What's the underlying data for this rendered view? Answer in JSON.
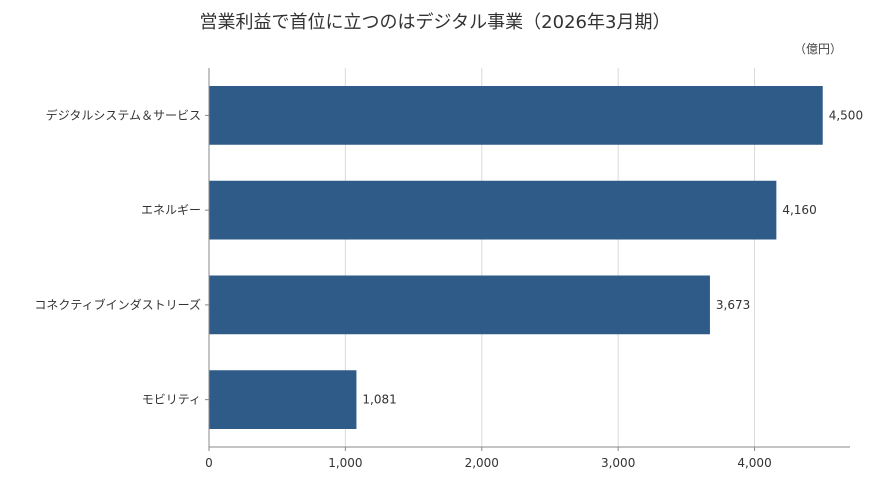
{
  "chart_data": {
    "type": "bar",
    "orientation": "horizontal",
    "title": "営業利益で首位に立つのはデジタル事業（2026年3月期）",
    "unit_label": "（億円）",
    "categories": [
      "デジタルシステム＆サービス",
      "エネルギー",
      "コネクティブインダストリーズ",
      "モビリティ"
    ],
    "values": [
      4500,
      4160,
      3673,
      1081
    ],
    "value_labels": [
      "4,500",
      "4,160",
      "3,673",
      "1,081"
    ],
    "xticks": [
      0,
      1000,
      2000,
      3000,
      4000
    ],
    "xtick_labels": [
      "0",
      "1,000",
      "2,000",
      "3,000",
      "4,000"
    ],
    "xlim": [
      0,
      4700
    ],
    "grid": true,
    "bar_color": "#2e5b87",
    "grid_color": "#d9d9d9",
    "axis_color": "#888888"
  }
}
